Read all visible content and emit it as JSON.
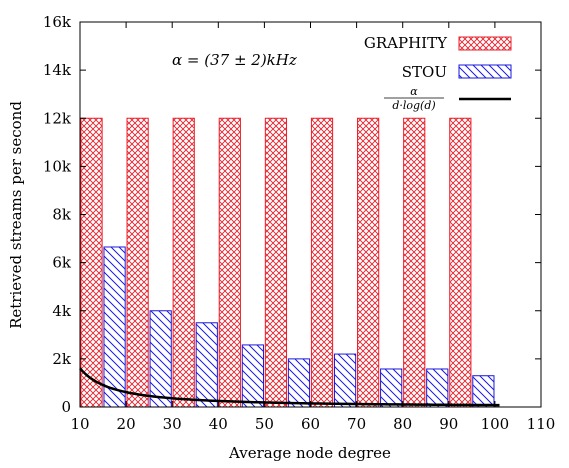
{
  "chart_data": {
    "type": "bar",
    "xlabel": "Average node degree",
    "ylabel": "Retrieved streams per second",
    "xlim": [
      10,
      110
    ],
    "ylim": [
      0,
      16000
    ],
    "x_ticks": [
      10,
      20,
      30,
      40,
      50,
      60,
      70,
      80,
      90,
      100,
      110
    ],
    "x_tick_labels": [
      "10",
      "20",
      "30",
      "40",
      "50",
      "60",
      "70",
      "80",
      "90",
      "100",
      "110"
    ],
    "y_ticks": [
      0,
      2000,
      4000,
      6000,
      8000,
      10000,
      12000,
      14000,
      16000
    ],
    "y_tick_labels": [
      "0",
      "2k",
      "4k",
      "6k",
      "8k",
      "10k",
      "12k",
      "14k",
      "16k"
    ],
    "legend_position": "top-right",
    "annotation": "α = (37 ± 2)kHz",
    "series": [
      {
        "name": "GRAPHITY",
        "kind": "bar",
        "color": "#e8202a",
        "pattern": "crosshatch",
        "x": [
          12.5,
          22.5,
          32.5,
          42.5,
          52.5,
          62.5,
          72.5,
          82.5,
          92.5
        ],
        "values": [
          12000,
          12000,
          12000,
          12000,
          12000,
          12000,
          12000,
          12000,
          12000
        ]
      },
      {
        "name": "STOU",
        "kind": "bar",
        "color": "#1a1adc",
        "pattern": "diagonal",
        "x": [
          17.5,
          27.5,
          37.5,
          47.5,
          57.5,
          67.5,
          77.5,
          87.5,
          97.5
        ],
        "values": [
          6650,
          4000,
          3500,
          2580,
          2000,
          2200,
          1580,
          1580,
          1300
        ]
      },
      {
        "name_numerator": "α",
        "name_denominator": "d·log(d)",
        "kind": "line",
        "color": "#000000",
        "x_start": 10,
        "x_end": 101,
        "alpha": 37000
      }
    ]
  }
}
